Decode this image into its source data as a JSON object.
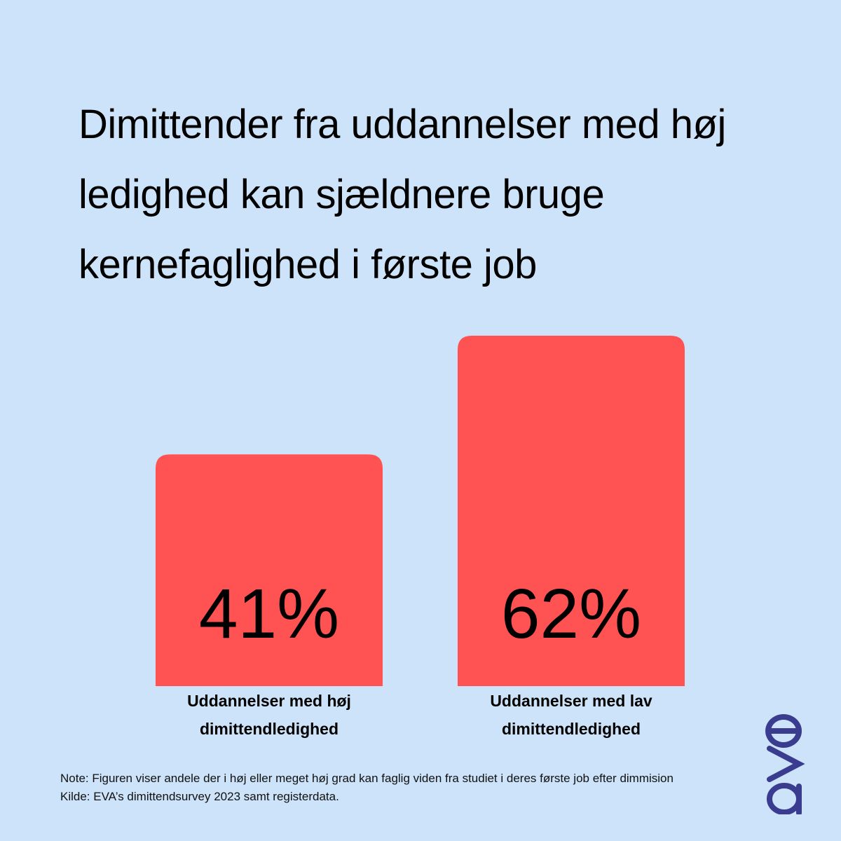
{
  "title": "Dimittender fra uddannelser med høj ledighed kan sjældnere bruge kernefaglighed i første job",
  "chart_data": {
    "type": "bar",
    "categories": [
      "Uddannelser med høj dimittendledighed",
      "Uddannelser med lav dimittendledighed"
    ],
    "category_lines": [
      [
        "Uddannelser med høj",
        "dimittendledighed"
      ],
      [
        "Uddannelser med lav",
        "dimittendledighed"
      ]
    ],
    "values": [
      41,
      62
    ],
    "value_labels": [
      "41%",
      "62%"
    ],
    "ylim": [
      0,
      62
    ],
    "bar_color": "#ff5252",
    "grid": false
  },
  "footer": {
    "note": "Note: Figuren viser andele der i høj eller meget høj grad kan faglig viden fra studiet i deres første job efter dimmision",
    "source": "Kilde: EVA’s dimittendsurvey 2023 samt registerdata."
  },
  "logo": {
    "text": "eva",
    "color": "#3a3d8f"
  },
  "colors": {
    "background": "#cce3f9",
    "bar": "#ff5252"
  }
}
